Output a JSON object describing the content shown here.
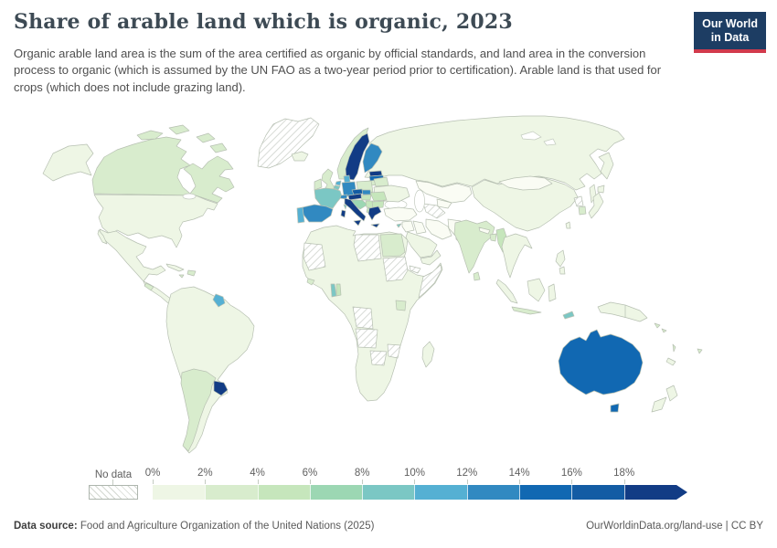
{
  "header": {
    "title": "Share of arable land which is organic, 2023",
    "subtitle": "Organic arable land area is the sum of the area certified as organic by official standards, and land area in the conversion process to organic (which is assumed by the UN FAO as a two-year period prior to certification). Arable land is that used for crops (which does not include grazing land).",
    "logo": {
      "line1": "Our World",
      "line2": "in Data",
      "bg_color": "#1d3d63",
      "stripe_color": "#d23a4c"
    }
  },
  "legend": {
    "no_data_label": "No data",
    "bins": [
      {
        "label": "0%",
        "color": "#eef6e5"
      },
      {
        "label": "2%",
        "color": "#d8eccd"
      },
      {
        "label": "4%",
        "color": "#c6e6bc"
      },
      {
        "label": "6%",
        "color": "#9cd7b3"
      },
      {
        "label": "8%",
        "color": "#7bc7c4"
      },
      {
        "label": "10%",
        "color": "#55b0d3"
      },
      {
        "label": "12%",
        "color": "#3189c1"
      },
      {
        "label": "14%",
        "color": "#1168b2"
      },
      {
        "label": "16%",
        "color": "#135ca4"
      },
      {
        "label": "18%",
        "color": "#123c85"
      }
    ]
  },
  "map": {
    "palette": {
      "bin1": "#eef6e5",
      "bin1b": "#fafcf4",
      "bin2": "#d8eccd",
      "bin3": "#c6e6bc",
      "bin4": "#9cd7b3",
      "bin5": "#7bc7c4",
      "bin6": "#55b0d3",
      "bin7": "#3189c1",
      "bin8": "#1168b2",
      "bin9": "#135ca4",
      "bin10": "#123c85",
      "nodata": "url(#hatch)"
    }
  },
  "footer": {
    "source_label": "Data source:",
    "source_text": " Food and Agriculture Organization of the United Nations (2025)",
    "credit_text": "OurWorldinData.org/land-use | CC BY"
  },
  "chart_data": {
    "type": "choropleth",
    "title": "Share of arable land which is organic, 2023",
    "unit": "% of arable land",
    "legend_bins": [
      "0-2%",
      "2-4%",
      "4-6%",
      "6-8%",
      "8-10%",
      "10-12%",
      "12-14%",
      "14-16%",
      "16-18%",
      "18%+"
    ],
    "countries": [
      {
        "name": "Sweden",
        "bin": "18%+"
      },
      {
        "name": "Estonia",
        "bin": "18%+"
      },
      {
        "name": "Italy",
        "bin": "18%+"
      },
      {
        "name": "Austria",
        "bin": "18%+"
      },
      {
        "name": "Greece",
        "bin": "18%+"
      },
      {
        "name": "Uruguay",
        "bin": "18%+"
      },
      {
        "name": "Czechia",
        "bin": "16-18%"
      },
      {
        "name": "Australia",
        "bin": "14-16%"
      },
      {
        "name": "Latvia",
        "bin": "14-16%"
      },
      {
        "name": "Finland",
        "bin": "12-14%"
      },
      {
        "name": "Germany",
        "bin": "12-14%"
      },
      {
        "name": "Spain",
        "bin": "12-14%"
      },
      {
        "name": "Switzerland",
        "bin": "12-14%"
      },
      {
        "name": "Slovakia",
        "bin": "12-14%"
      },
      {
        "name": "Denmark",
        "bin": "10-12%"
      },
      {
        "name": "Netherlands",
        "bin": "10-12%"
      },
      {
        "name": "Portugal",
        "bin": "10-12%"
      },
      {
        "name": "French Guiana",
        "bin": "10-12%"
      },
      {
        "name": "France",
        "bin": "8-10%"
      },
      {
        "name": "Belgium",
        "bin": "8-10%"
      },
      {
        "name": "Togo",
        "bin": "8-10%"
      },
      {
        "name": "Cyprus",
        "bin": "8-10%"
      },
      {
        "name": "Timor-Leste",
        "bin": "8-10%"
      },
      {
        "name": "Croatia",
        "bin": "6-8%"
      },
      {
        "name": "Slovenia",
        "bin": "6-8%"
      },
      {
        "name": "Hungary",
        "bin": "4-6%"
      },
      {
        "name": "Romania",
        "bin": "4-6%"
      },
      {
        "name": "Bulgaria",
        "bin": "4-6%"
      },
      {
        "name": "Serbia",
        "bin": "4-6%"
      },
      {
        "name": "Myanmar",
        "bin": "4-6%"
      },
      {
        "name": "Norway",
        "bin": "2-4%"
      },
      {
        "name": "United Kingdom",
        "bin": "2-4%"
      },
      {
        "name": "Ireland",
        "bin": "2-4%"
      },
      {
        "name": "Poland",
        "bin": "2-4%"
      },
      {
        "name": "Lithuania",
        "bin": "2-4%"
      },
      {
        "name": "Belarus",
        "bin": "2-4%"
      },
      {
        "name": "Canada",
        "bin": "2-4%"
      },
      {
        "name": "Argentina",
        "bin": "2-4%"
      },
      {
        "name": "Chile",
        "bin": "2-4%"
      },
      {
        "name": "India",
        "bin": "2-4%"
      },
      {
        "name": "Sri Lanka",
        "bin": "2-4%"
      },
      {
        "name": "Bangladesh",
        "bin": "2-4%"
      },
      {
        "name": "Egypt",
        "bin": "2-4%"
      },
      {
        "name": "Uganda",
        "bin": "2-4%"
      },
      {
        "name": "South Korea",
        "bin": "2-4%"
      },
      {
        "name": "Dominican Republic",
        "bin": "2-4%"
      },
      {
        "name": "United States",
        "bin": "0-2%"
      },
      {
        "name": "Mexico",
        "bin": "0-2%"
      },
      {
        "name": "Brazil",
        "bin": "0-2%"
      },
      {
        "name": "Russia",
        "bin": "0-2%"
      },
      {
        "name": "China",
        "bin": "0-2%"
      },
      {
        "name": "Japan",
        "bin": "0-2%"
      },
      {
        "name": "Indonesia",
        "bin": "0-2%"
      },
      {
        "name": "New Zealand",
        "bin": "0-2%"
      },
      {
        "name": "Turkey",
        "bin": "0-2%"
      },
      {
        "name": "Iran",
        "bin": "0-2%"
      },
      {
        "name": "Kazakhstan",
        "bin": "0-2%"
      },
      {
        "name": "Saudi Arabia",
        "bin": "0-2%"
      },
      {
        "name": "Most of Africa",
        "bin": "0-2%"
      }
    ],
    "no_data_countries": [
      "Greenland",
      "Libya",
      "Mauritania",
      "Western Sahara",
      "Sudan",
      "Eritrea",
      "Somalia",
      "DR Congo",
      "Angola",
      "Botswana",
      "Zimbabwe",
      "Turkmenistan",
      "North Korea"
    ]
  }
}
